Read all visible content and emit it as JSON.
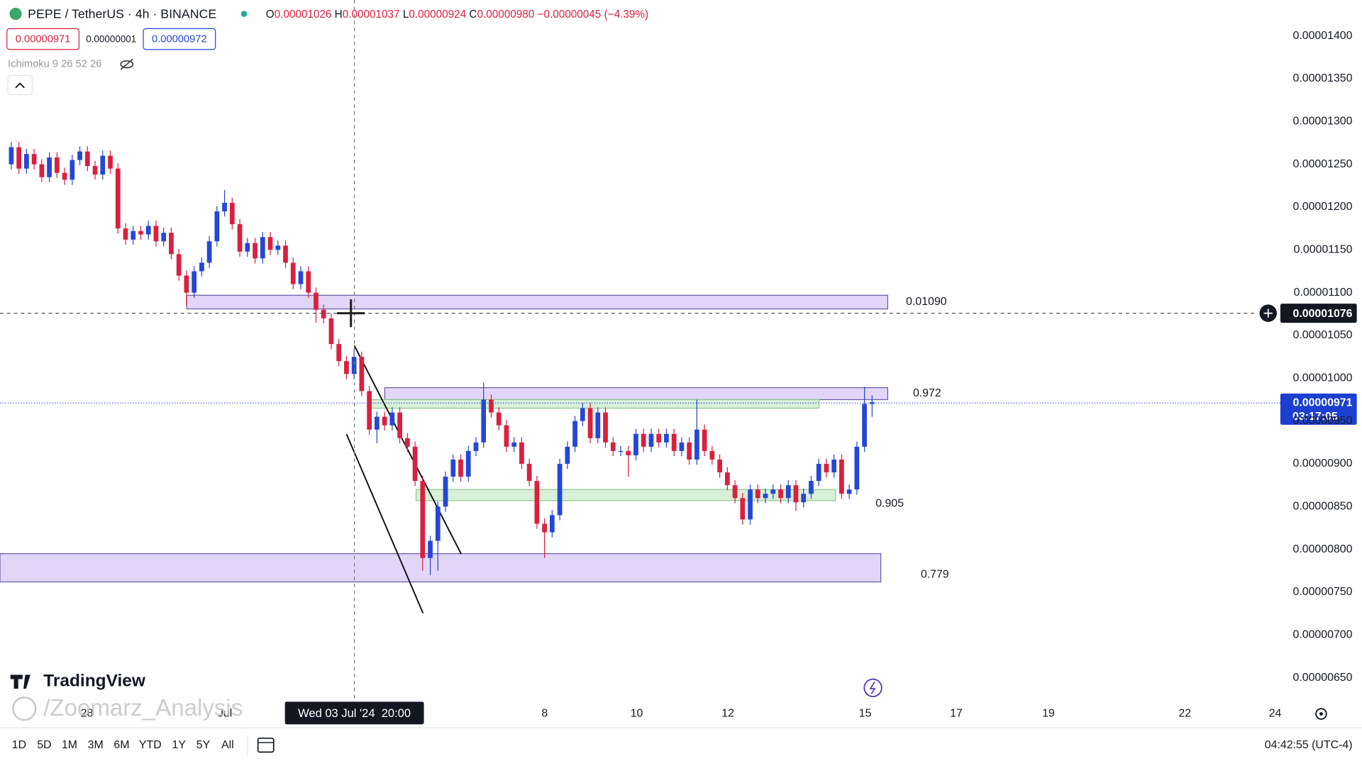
{
  "header": {
    "symbol": "PEPE / TetherUS · 4h · BINANCE",
    "ohlc": [
      {
        "key": "O",
        "value": "0.00001026"
      },
      {
        "key": "H",
        "value": "0.00001037"
      },
      {
        "key": "L",
        "value": "0.00000924"
      },
      {
        "key": "C",
        "value": "0.00000980"
      }
    ],
    "change": "−0.00000045 (−4.39%)"
  },
  "order": {
    "sell": "0.00000971",
    "spread": "0.00000001",
    "buy": "0.00000972"
  },
  "indicator": "Ichimoku 9 26 52 26",
  "chart_data": {
    "type": "candlestick",
    "up_color": "#2447d6",
    "down_color": "#d9203f",
    "ylim": [
      6.22e-06,
      1.442e-05
    ],
    "yticks": [
      {
        "value": 1.4e-05,
        "label": "0.00001400"
      },
      {
        "value": 1.35e-05,
        "label": "0.00001350"
      },
      {
        "value": 1.3e-05,
        "label": "0.00001300"
      },
      {
        "value": 1.25e-05,
        "label": "0.00001250"
      },
      {
        "value": 1.2e-05,
        "label": "0.00001200"
      },
      {
        "value": 1.15e-05,
        "label": "0.00001150"
      },
      {
        "value": 1.1e-05,
        "label": "0.00001100"
      },
      {
        "value": 1.05e-05,
        "label": "0.00001050"
      },
      {
        "value": 1e-05,
        "label": "0.00001000"
      },
      {
        "value": 9.5e-06,
        "label": "0.00000950"
      },
      {
        "value": 9e-06,
        "label": "0.00000900"
      },
      {
        "value": 8.5e-06,
        "label": "0.00000850"
      },
      {
        "value": 8e-06,
        "label": "0.00000800"
      },
      {
        "value": 7.5e-06,
        "label": "0.00000750"
      },
      {
        "value": 7e-06,
        "label": "0.00000700"
      },
      {
        "value": 6.5e-06,
        "label": "0.00000650"
      }
    ],
    "x_labels": [
      "28",
      "Jul",
      "8",
      "10",
      "12",
      "15",
      "17",
      "19",
      "22",
      "24"
    ],
    "crosshair": {
      "value": 1.076e-05,
      "label": "0.00001076",
      "time": "Wed 03 Jul '24  20:00"
    },
    "last_price": {
      "value": 9.71e-06,
      "label": "0.00000971",
      "countdown": "03:17:05"
    },
    "zones": [
      {
        "label": "0.01090",
        "low": 1.081e-05,
        "high": 1.097e-05,
        "color": "#e2d6f8"
      },
      {
        "label": "0.972",
        "low": 9.75e-06,
        "high": 9.89e-06,
        "color": "#e2d6f8"
      },
      {
        "low": 9.65e-06,
        "high": 9.75e-06,
        "color": "#d8efd8"
      },
      {
        "label": "0.905",
        "low": 8.57e-06,
        "high": 8.7e-06,
        "color": "#d8efd8"
      },
      {
        "label": "0.779",
        "low": 7.62e-06,
        "high": 7.95e-06,
        "color": "#e2d6f8"
      }
    ],
    "candles": [
      [
        1.25e-05,
        1.276e-05,
        1.244e-05,
        1.27e-05
      ],
      [
        1.27e-05,
        1.276e-05,
        1.239e-05,
        1.245e-05
      ],
      [
        1.245e-05,
        1.268e-05,
        1.239e-05,
        1.262e-05
      ],
      [
        1.262e-05,
        1.268e-05,
        1.244e-05,
        1.25e-05
      ],
      [
        1.25e-05,
        1.256e-05,
        1.229e-05,
        1.235e-05
      ],
      [
        1.235e-05,
        1.264e-05,
        1.229e-05,
        1.258e-05
      ],
      [
        1.258e-05,
        1.264e-05,
        1.234e-05,
        1.24e-05
      ],
      [
        1.24e-05,
        1.246e-05,
        1.226e-05,
        1.232e-05
      ],
      [
        1.232e-05,
        1.261e-05,
        1.226e-05,
        1.255e-05
      ],
      [
        1.255e-05,
        1.271e-05,
        1.249e-05,
        1.265e-05
      ],
      [
        1.265e-05,
        1.271e-05,
        1.242e-05,
        1.248e-05
      ],
      [
        1.248e-05,
        1.254e-05,
        1.232e-05,
        1.238e-05
      ],
      [
        1.238e-05,
        1.266e-05,
        1.232e-05,
        1.26e-05
      ],
      [
        1.26e-05,
        1.266e-05,
        1.239e-05,
        1.245e-05
      ],
      [
        1.245e-05,
        1.251e-05,
        1.169e-05,
        1.175e-05
      ],
      [
        1.175e-05,
        1.181e-05,
        1.156e-05,
        1.162e-05
      ],
      [
        1.162e-05,
        1.178e-05,
        1.156e-05,
        1.172e-05
      ],
      [
        1.172e-05,
        1.178e-05,
        1.162e-05,
        1.168e-05
      ],
      [
        1.168e-05,
        1.184e-05,
        1.162e-05,
        1.178e-05
      ],
      [
        1.178e-05,
        1.184e-05,
        1.154e-05,
        1.16e-05
      ],
      [
        1.16e-05,
        1.176e-05,
        1.154e-05,
        1.17e-05
      ],
      [
        1.17e-05,
        1.176e-05,
        1.139e-05,
        1.145e-05
      ],
      [
        1.145e-05,
        1.151e-05,
        1.114e-05,
        1.12e-05
      ],
      [
        1.12e-05,
        1.126e-05,
        1.085e-05,
        1.1e-05
      ],
      [
        1.1e-05,
        1.131e-05,
        1.094e-05,
        1.125e-05
      ],
      [
        1.125e-05,
        1.141e-05,
        1.119e-05,
        1.135e-05
      ],
      [
        1.135e-05,
        1.166e-05,
        1.129e-05,
        1.16e-05
      ],
      [
        1.16e-05,
        1.201e-05,
        1.154e-05,
        1.195e-05
      ],
      [
        1.195e-05,
        1.22e-05,
        1.189e-05,
        1.205e-05
      ],
      [
        1.205e-05,
        1.211e-05,
        1.174e-05,
        1.18e-05
      ],
      [
        1.18e-05,
        1.186e-05,
        1.142e-05,
        1.148e-05
      ],
      [
        1.148e-05,
        1.164e-05,
        1.142e-05,
        1.158e-05
      ],
      [
        1.158e-05,
        1.164e-05,
        1.134e-05,
        1.14e-05
      ],
      [
        1.14e-05,
        1.171e-05,
        1.134e-05,
        1.165e-05
      ],
      [
        1.165e-05,
        1.171e-05,
        1.144e-05,
        1.15e-05
      ],
      [
        1.15e-05,
        1.161e-05,
        1.144e-05,
        1.155e-05
      ],
      [
        1.155e-05,
        1.161e-05,
        1.129e-05,
        1.135e-05
      ],
      [
        1.135e-05,
        1.141e-05,
        1.104e-05,
        1.11e-05
      ],
      [
        1.11e-05,
        1.131e-05,
        1.104e-05,
        1.125e-05
      ],
      [
        1.125e-05,
        1.131e-05,
        1.094e-05,
        1.1e-05
      ],
      [
        1.1e-05,
        1.106e-05,
        1.065e-05,
        1.08e-05
      ],
      [
        1.08e-05,
        1.086e-05,
        1.064e-05,
        1.07e-05
      ],
      [
        1.07e-05,
        1.076e-05,
        1.034e-05,
        1.04e-05
      ],
      [
        1.04e-05,
        1.046e-05,
        1.014e-05,
        1.02e-05
      ],
      [
        1.02e-05,
        1.026e-05,
        9.99e-06,
        1.005e-05
      ],
      [
        1.005e-05,
        1.035e-05,
        9.99e-06,
        1.025e-05
      ],
      [
        1.025e-05,
        1.031e-05,
        9.79e-06,
        9.85e-06
      ],
      [
        9.85e-06,
        9.91e-06,
        9.34e-06,
        9.4e-06
      ],
      [
        9.4e-06,
        9.61e-06,
        9.24e-06,
        9.55e-06
      ],
      [
        9.55e-06,
        9.61e-06,
        9.39e-06,
        9.45e-06
      ],
      [
        9.45e-06,
        9.66e-06,
        9.39e-06,
        9.6e-06
      ],
      [
        9.6e-06,
        9.66e-06,
        9.24e-06,
        9.3e-06
      ],
      [
        9.3e-06,
        9.36e-06,
        9.14e-06,
        9.2e-06
      ],
      [
        9.2e-06,
        9.26e-06,
        8.74e-06,
        8.8e-06
      ],
      [
        8.8e-06,
        8.86e-06,
        7.75e-06,
        7.9e-06
      ],
      [
        7.9e-06,
        8.16e-06,
        7.7e-06,
        8.1e-06
      ],
      [
        8.1e-06,
        8.56e-06,
        7.75e-06,
        8.5e-06
      ],
      [
        8.5e-06,
        8.91e-06,
        8.44e-06,
        8.85e-06
      ],
      [
        8.85e-06,
        9.11e-06,
        8.79e-06,
        9.05e-06
      ],
      [
        9.05e-06,
        9.11e-06,
        8.79e-06,
        8.85e-06
      ],
      [
        8.85e-06,
        9.21e-06,
        8.79e-06,
        9.15e-06
      ],
      [
        9.15e-06,
        9.31e-06,
        9.09e-06,
        9.25e-06
      ],
      [
        9.25e-06,
        9.95e-06,
        9.19e-06,
        9.75e-06
      ],
      [
        9.75e-06,
        9.81e-06,
        9.54e-06,
        9.6e-06
      ],
      [
        9.6e-06,
        9.66e-06,
        9.39e-06,
        9.45e-06
      ],
      [
        9.45e-06,
        9.51e-06,
        9.14e-06,
        9.2e-06
      ],
      [
        9.2e-06,
        9.31e-06,
        9.14e-06,
        9.25e-06
      ],
      [
        9.25e-06,
        9.31e-06,
        8.94e-06,
        9e-06
      ],
      [
        9e-06,
        9.06e-06,
        8.74e-06,
        8.8e-06
      ],
      [
        8.8e-06,
        8.86e-06,
        8.24e-06,
        8.3e-06
      ],
      [
        8.3e-06,
        8.36e-06,
        7.9e-06,
        8.2e-06
      ],
      [
        8.2e-06,
        8.46e-06,
        8.14e-06,
        8.4e-06
      ],
      [
        8.4e-06,
        9.06e-06,
        8.34e-06,
        9e-06
      ],
      [
        9e-06,
        9.26e-06,
        8.94e-06,
        9.2e-06
      ],
      [
        9.2e-06,
        9.56e-06,
        9.14e-06,
        9.5e-06
      ],
      [
        9.5e-06,
        9.71e-06,
        9.44e-06,
        9.65e-06
      ],
      [
        9.65e-06,
        9.71e-06,
        9.24e-06,
        9.3e-06
      ],
      [
        9.3e-06,
        9.66e-06,
        9.24e-06,
        9.6e-06
      ],
      [
        9.6e-06,
        9.66e-06,
        9.19e-06,
        9.25e-06
      ],
      [
        9.25e-06,
        9.31e-06,
        9.09e-06,
        9.15e-06
      ],
      [
        9.15e-06,
        9.21e-06,
        9.09e-06,
        9.15e-06
      ],
      [
        9.15e-06,
        9.21e-06,
        8.85e-06,
        9.1e-06
      ],
      [
        9.1e-06,
        9.41e-06,
        9.04e-06,
        9.35e-06
      ],
      [
        9.35e-06,
        9.41e-06,
        9.14e-06,
        9.2e-06
      ],
      [
        9.2e-06,
        9.41e-06,
        9.14e-06,
        9.35e-06
      ],
      [
        9.35e-06,
        9.41e-06,
        9.19e-06,
        9.25e-06
      ],
      [
        9.25e-06,
        9.41e-06,
        9.19e-06,
        9.35e-06
      ],
      [
        9.35e-06,
        9.41e-06,
        9.09e-06,
        9.15e-06
      ],
      [
        9.15e-06,
        9.31e-06,
        9.09e-06,
        9.25e-06
      ],
      [
        9.25e-06,
        9.31e-06,
        8.99e-06,
        9.05e-06
      ],
      [
        9.05e-06,
        9.75e-06,
        8.99e-06,
        9.4e-06
      ],
      [
        9.4e-06,
        9.46e-06,
        9.09e-06,
        9.15e-06
      ],
      [
        9.15e-06,
        9.21e-06,
        8.99e-06,
        9.05e-06
      ],
      [
        9.05e-06,
        9.11e-06,
        8.84e-06,
        8.9e-06
      ],
      [
        8.9e-06,
        8.96e-06,
        8.69e-06,
        8.75e-06
      ],
      [
        8.75e-06,
        8.81e-06,
        8.54e-06,
        8.6e-06
      ],
      [
        8.6e-06,
        8.66e-06,
        8.29e-06,
        8.35e-06
      ],
      [
        8.35e-06,
        8.76e-06,
        8.29e-06,
        8.7e-06
      ],
      [
        8.7e-06,
        8.76e-06,
        8.54e-06,
        8.6e-06
      ],
      [
        8.6e-06,
        8.71e-06,
        8.54e-06,
        8.65e-06
      ],
      [
        8.65e-06,
        8.76e-06,
        8.59e-06,
        8.7e-06
      ],
      [
        8.7e-06,
        8.76e-06,
        8.54e-06,
        8.6e-06
      ],
      [
        8.6e-06,
        8.81e-06,
        8.54e-06,
        8.75e-06
      ],
      [
        8.75e-06,
        8.81e-06,
        8.45e-06,
        8.55e-06
      ],
      [
        8.55e-06,
        8.71e-06,
        8.49e-06,
        8.65e-06
      ],
      [
        8.65e-06,
        8.86e-06,
        8.59e-06,
        8.8e-06
      ],
      [
        8.8e-06,
        9.06e-06,
        8.74e-06,
        9e-06
      ],
      [
        9e-06,
        9.06e-06,
        8.84e-06,
        8.9e-06
      ],
      [
        8.9e-06,
        9.11e-06,
        8.84e-06,
        9.05e-06
      ],
      [
        9.05e-06,
        9.11e-06,
        8.59e-06,
        8.65e-06
      ],
      [
        8.65e-06,
        8.76e-06,
        8.59e-06,
        8.7e-06
      ],
      [
        8.7e-06,
        9.26e-06,
        8.64e-06,
        9.2e-06
      ],
      [
        9.2e-06,
        9.9e-06,
        9.14e-06,
        9.7e-06
      ],
      [
        9.7e-06,
        9.8e-06,
        9.55e-06,
        9.72e-06
      ]
    ]
  },
  "footer": {
    "ranges": [
      "1D",
      "5D",
      "1M",
      "3M",
      "6M",
      "YTD",
      "1Y",
      "5Y",
      "All"
    ],
    "clock": "04:42:55 (UTC-4)",
    "logo": "TradingView",
    "watermark": "/Zoomarz_Analysis"
  }
}
